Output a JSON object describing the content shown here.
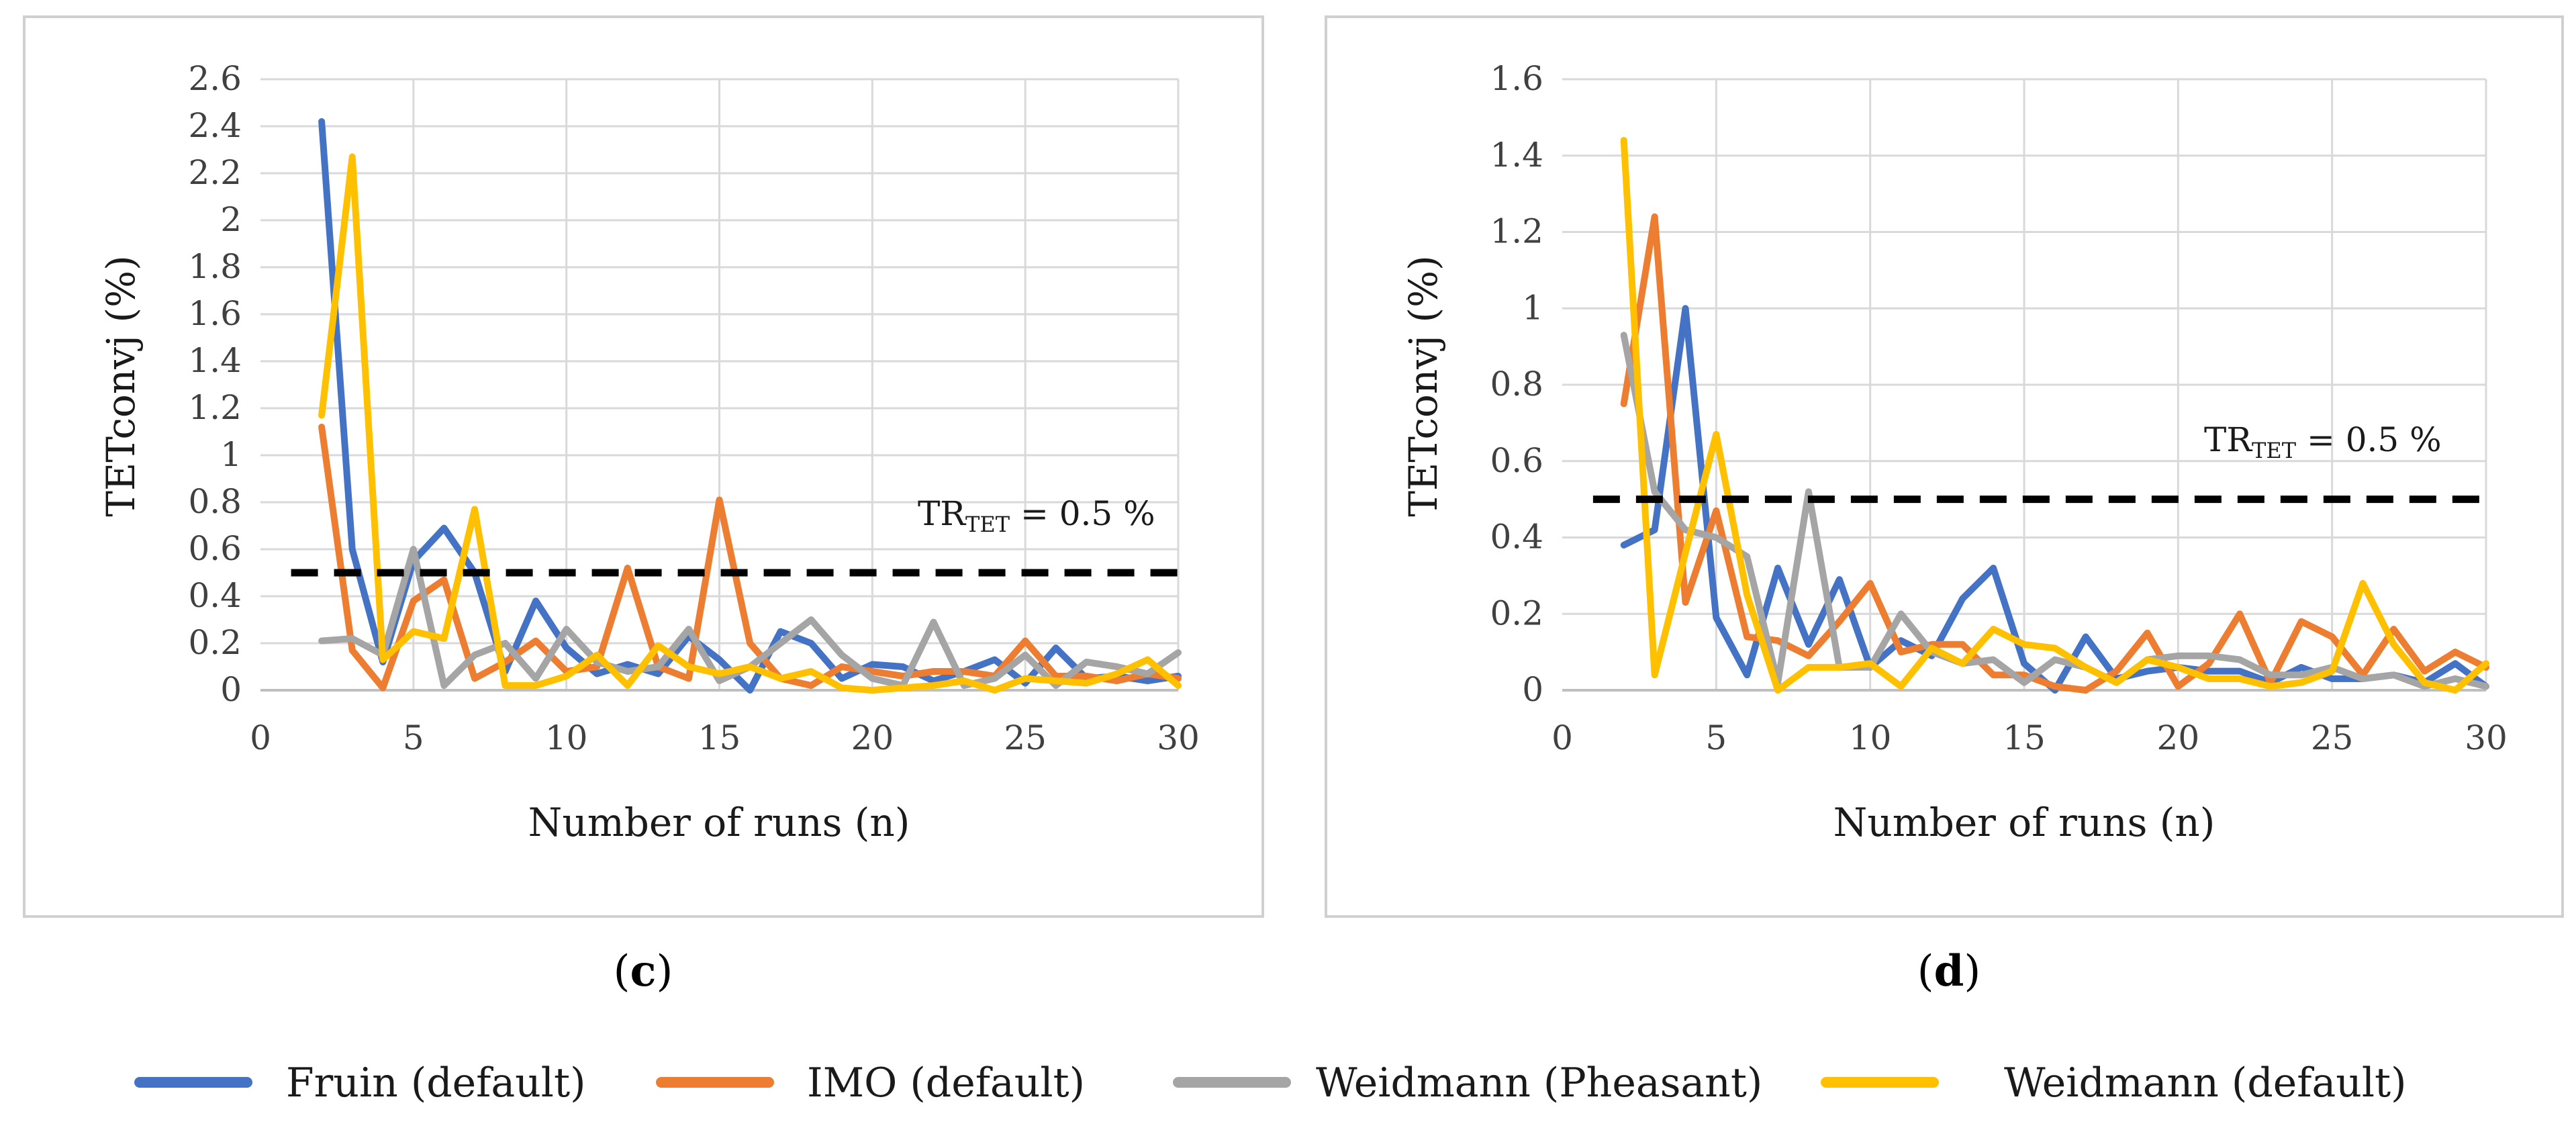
{
  "figure": {
    "colors": {
      "Fruin (default)": "#4472C4",
      "IMO (default)": "#ED7D31",
      "Weidmann (Pheasant)": "#A5A5A5",
      "Weidmann (default)": "#FFC000",
      "threshold": "#000000",
      "grid": "#d9d9d9",
      "frame": "#d0d0d0"
    },
    "legend": [
      {
        "name": "Fruin (default)"
      },
      {
        "name": "IMO (default)"
      },
      {
        "name": "Weidmann (Pheasant)"
      },
      {
        "name": "Weidmann (default)"
      }
    ]
  },
  "chart_data": [
    {
      "type": "line",
      "panel_label": "c",
      "xlabel": "Number of runs (n)",
      "ylabel": "TETconvj (%)",
      "xlim": [
        0,
        30
      ],
      "ylim": [
        0,
        2.6
      ],
      "xticks": [
        0,
        5,
        10,
        15,
        20,
        25,
        30
      ],
      "yticks": [
        0,
        0.2,
        0.4,
        0.6,
        0.8,
        1,
        1.2,
        1.4,
        1.6,
        1.8,
        2,
        2.2,
        2.4,
        2.6
      ],
      "grid": true,
      "threshold": {
        "value": 0.5,
        "x_range": [
          1,
          30
        ],
        "label_main": "TR",
        "label_sub": "TET",
        "label_rest": " = 0.5 %"
      },
      "x": [
        2,
        3,
        4,
        5,
        6,
        7,
        8,
        9,
        10,
        11,
        12,
        13,
        14,
        15,
        16,
        17,
        18,
        19,
        20,
        21,
        22,
        23,
        24,
        25,
        26,
        27,
        28,
        29,
        30
      ],
      "series": [
        {
          "name": "Fruin (default)",
          "values": [
            2.42,
            0.6,
            0.12,
            0.55,
            0.69,
            0.5,
            0.08,
            0.38,
            0.18,
            0.07,
            0.11,
            0.07,
            0.23,
            0.13,
            0.0,
            0.25,
            0.2,
            0.05,
            0.11,
            0.1,
            0.04,
            0.08,
            0.13,
            0.03,
            0.18,
            0.05,
            0.06,
            0.04,
            0.06
          ]
        },
        {
          "name": "IMO (default)",
          "values": [
            1.12,
            0.17,
            0.01,
            0.38,
            0.47,
            0.05,
            0.12,
            0.21,
            0.08,
            0.1,
            0.52,
            0.1,
            0.05,
            0.81,
            0.2,
            0.05,
            0.02,
            0.1,
            0.08,
            0.06,
            0.08,
            0.08,
            0.06,
            0.21,
            0.06,
            0.06,
            0.04,
            0.07,
            0.05
          ]
        },
        {
          "name": "Weidmann (Pheasant)",
          "values": [
            0.21,
            0.22,
            0.15,
            0.6,
            0.02,
            0.15,
            0.2,
            0.05,
            0.26,
            0.12,
            0.08,
            0.1,
            0.26,
            0.04,
            0.1,
            0.2,
            0.3,
            0.15,
            0.05,
            0.02,
            0.29,
            0.02,
            0.05,
            0.15,
            0.02,
            0.12,
            0.1,
            0.07,
            0.16
          ]
        },
        {
          "name": "Weidmann (default)",
          "values": [
            1.17,
            2.27,
            0.13,
            0.25,
            0.22,
            0.77,
            0.02,
            0.02,
            0.06,
            0.15,
            0.02,
            0.19,
            0.1,
            0.07,
            0.1,
            0.05,
            0.08,
            0.01,
            0.0,
            0.01,
            0.02,
            0.04,
            0.0,
            0.05,
            0.04,
            0.03,
            0.07,
            0.13,
            0.02
          ]
        }
      ]
    },
    {
      "type": "line",
      "panel_label": "d",
      "xlabel": "Number of runs (n)",
      "ylabel": "TETconvj (%)",
      "xlim": [
        0,
        30
      ],
      "ylim": [
        0,
        1.6
      ],
      "xticks": [
        0,
        5,
        10,
        15,
        20,
        25,
        30
      ],
      "yticks": [
        0,
        0.2,
        0.4,
        0.6,
        0.8,
        1,
        1.2,
        1.4,
        1.6
      ],
      "grid": true,
      "threshold": {
        "value": 0.5,
        "x_range": [
          1,
          30
        ],
        "label_main": "TR",
        "label_sub": "TET",
        "label_rest": " = 0.5 %"
      },
      "x": [
        2,
        3,
        4,
        5,
        6,
        7,
        8,
        9,
        10,
        11,
        12,
        13,
        14,
        15,
        16,
        17,
        18,
        19,
        20,
        21,
        22,
        23,
        24,
        25,
        26,
        27,
        28,
        29,
        30
      ],
      "series": [
        {
          "name": "Fruin (default)",
          "values": [
            0.38,
            0.42,
            1.0,
            0.19,
            0.04,
            0.32,
            0.12,
            0.29,
            0.06,
            0.13,
            0.09,
            0.24,
            0.32,
            0.07,
            0.0,
            0.14,
            0.03,
            0.05,
            0.06,
            0.05,
            0.05,
            0.02,
            0.06,
            0.03,
            0.03,
            0.04,
            0.02,
            0.07,
            0.01
          ]
        },
        {
          "name": "IMO (default)",
          "values": [
            0.75,
            1.24,
            0.23,
            0.47,
            0.14,
            0.13,
            0.09,
            0.18,
            0.28,
            0.1,
            0.12,
            0.12,
            0.04,
            0.04,
            0.01,
            0.0,
            0.05,
            0.15,
            0.01,
            0.07,
            0.2,
            0.02,
            0.18,
            0.14,
            0.04,
            0.16,
            0.05,
            0.1,
            0.06
          ]
        },
        {
          "name": "Weidmann (Pheasant)",
          "values": [
            0.93,
            0.52,
            0.42,
            0.4,
            0.35,
            0.02,
            0.52,
            0.06,
            0.06,
            0.2,
            0.1,
            0.07,
            0.08,
            0.02,
            0.08,
            0.06,
            0.02,
            0.08,
            0.09,
            0.09,
            0.08,
            0.04,
            0.04,
            0.06,
            0.03,
            0.04,
            0.01,
            0.03,
            0.01
          ]
        },
        {
          "name": "Weidmann (default)",
          "values": [
            1.44,
            0.04,
            0.36,
            0.67,
            0.25,
            0.0,
            0.06,
            0.06,
            0.07,
            0.01,
            0.11,
            0.07,
            0.16,
            0.12,
            0.11,
            0.06,
            0.02,
            0.08,
            0.06,
            0.03,
            0.03,
            0.01,
            0.02,
            0.05,
            0.28,
            0.12,
            0.02,
            0.0,
            0.07
          ]
        }
      ]
    }
  ]
}
